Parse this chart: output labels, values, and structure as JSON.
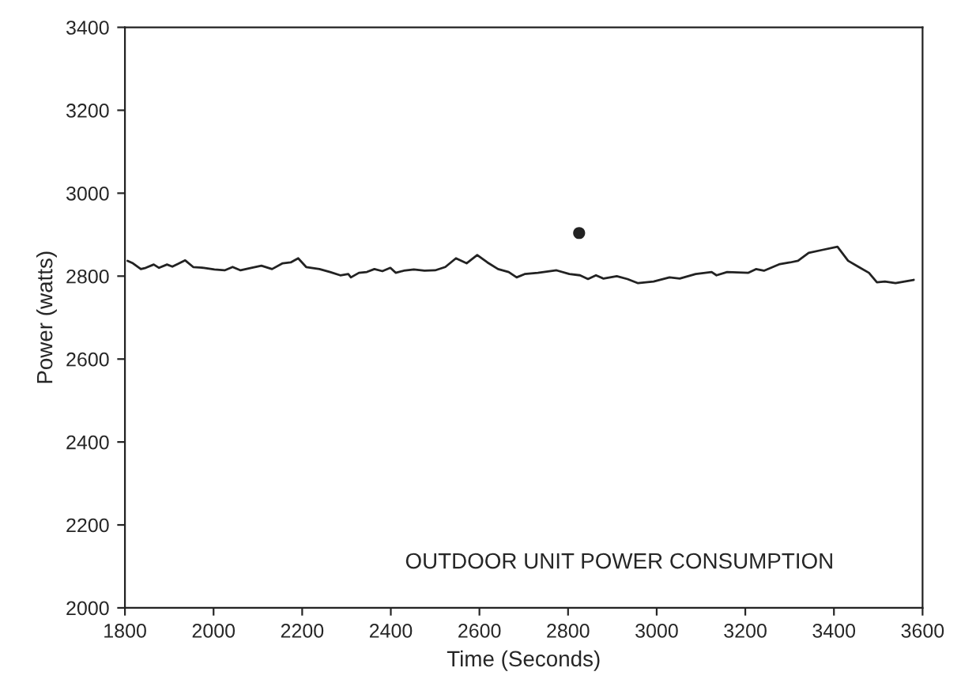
{
  "chart_data": {
    "type": "line",
    "xlabel": "Time (Seconds)",
    "ylabel": "Power (watts)",
    "annotations": [
      "OUTDOOR UNIT POWER CONSUMPTION"
    ],
    "xlim": [
      1800,
      3600
    ],
    "xticks": [
      1800,
      2000,
      2200,
      2400,
      2600,
      2800,
      3000,
      3200,
      3400,
      3600
    ],
    "ylim": [
      2000,
      3400
    ],
    "yticks": [
      2000,
      2200,
      2400,
      2600,
      2800,
      3000,
      3200,
      3400
    ],
    "grid": false,
    "series": [
      {
        "color": "#222222",
        "x": [
          1806,
          1818,
          1836,
          1847,
          1865,
          1877,
          1895,
          1907,
          1919,
          1936,
          1954,
          1978,
          2002,
          2025,
          2043,
          2061,
          2085,
          2108,
          2132,
          2156,
          2174,
          2191,
          2209,
          2239,
          2263,
          2286,
          2304,
          2310,
          2328,
          2346,
          2363,
          2381,
          2399,
          2411,
          2429,
          2452,
          2476,
          2500,
          2523,
          2547,
          2571,
          2595,
          2618,
          2642,
          2666,
          2684,
          2702,
          2732,
          2774,
          2803,
          2827,
          2845,
          2863,
          2880,
          2910,
          2934,
          2958,
          2993,
          3029,
          3052,
          3088,
          3124,
          3135,
          3159,
          3207,
          3224,
          3242,
          3278,
          3301,
          3319,
          3343,
          3373,
          3408,
          3432,
          3456,
          3479,
          3497,
          3515,
          3539,
          3580
        ],
        "values": [
          2837,
          2831,
          2817,
          2820,
          2828,
          2820,
          2828,
          2823,
          2829,
          2838,
          2822,
          2820,
          2816,
          2814,
          2822,
          2814,
          2820,
          2825,
          2817,
          2831,
          2833,
          2843,
          2822,
          2817,
          2810,
          2802,
          2805,
          2797,
          2808,
          2810,
          2817,
          2812,
          2820,
          2808,
          2813,
          2816,
          2813,
          2814,
          2822,
          2843,
          2831,
          2851,
          2833,
          2817,
          2810,
          2797,
          2805,
          2808,
          2814,
          2805,
          2802,
          2793,
          2802,
          2794,
          2800,
          2793,
          2783,
          2787,
          2797,
          2794,
          2805,
          2810,
          2802,
          2810,
          2808,
          2817,
          2813,
          2829,
          2833,
          2837,
          2856,
          2863,
          2871,
          2837,
          2822,
          2808,
          2785,
          2787,
          2783,
          2791
        ]
      },
      {
        "type": "scatter",
        "color": "#222222",
        "marker": "circle",
        "x": [
          2825
        ],
        "values": [
          2904
        ]
      }
    ]
  }
}
